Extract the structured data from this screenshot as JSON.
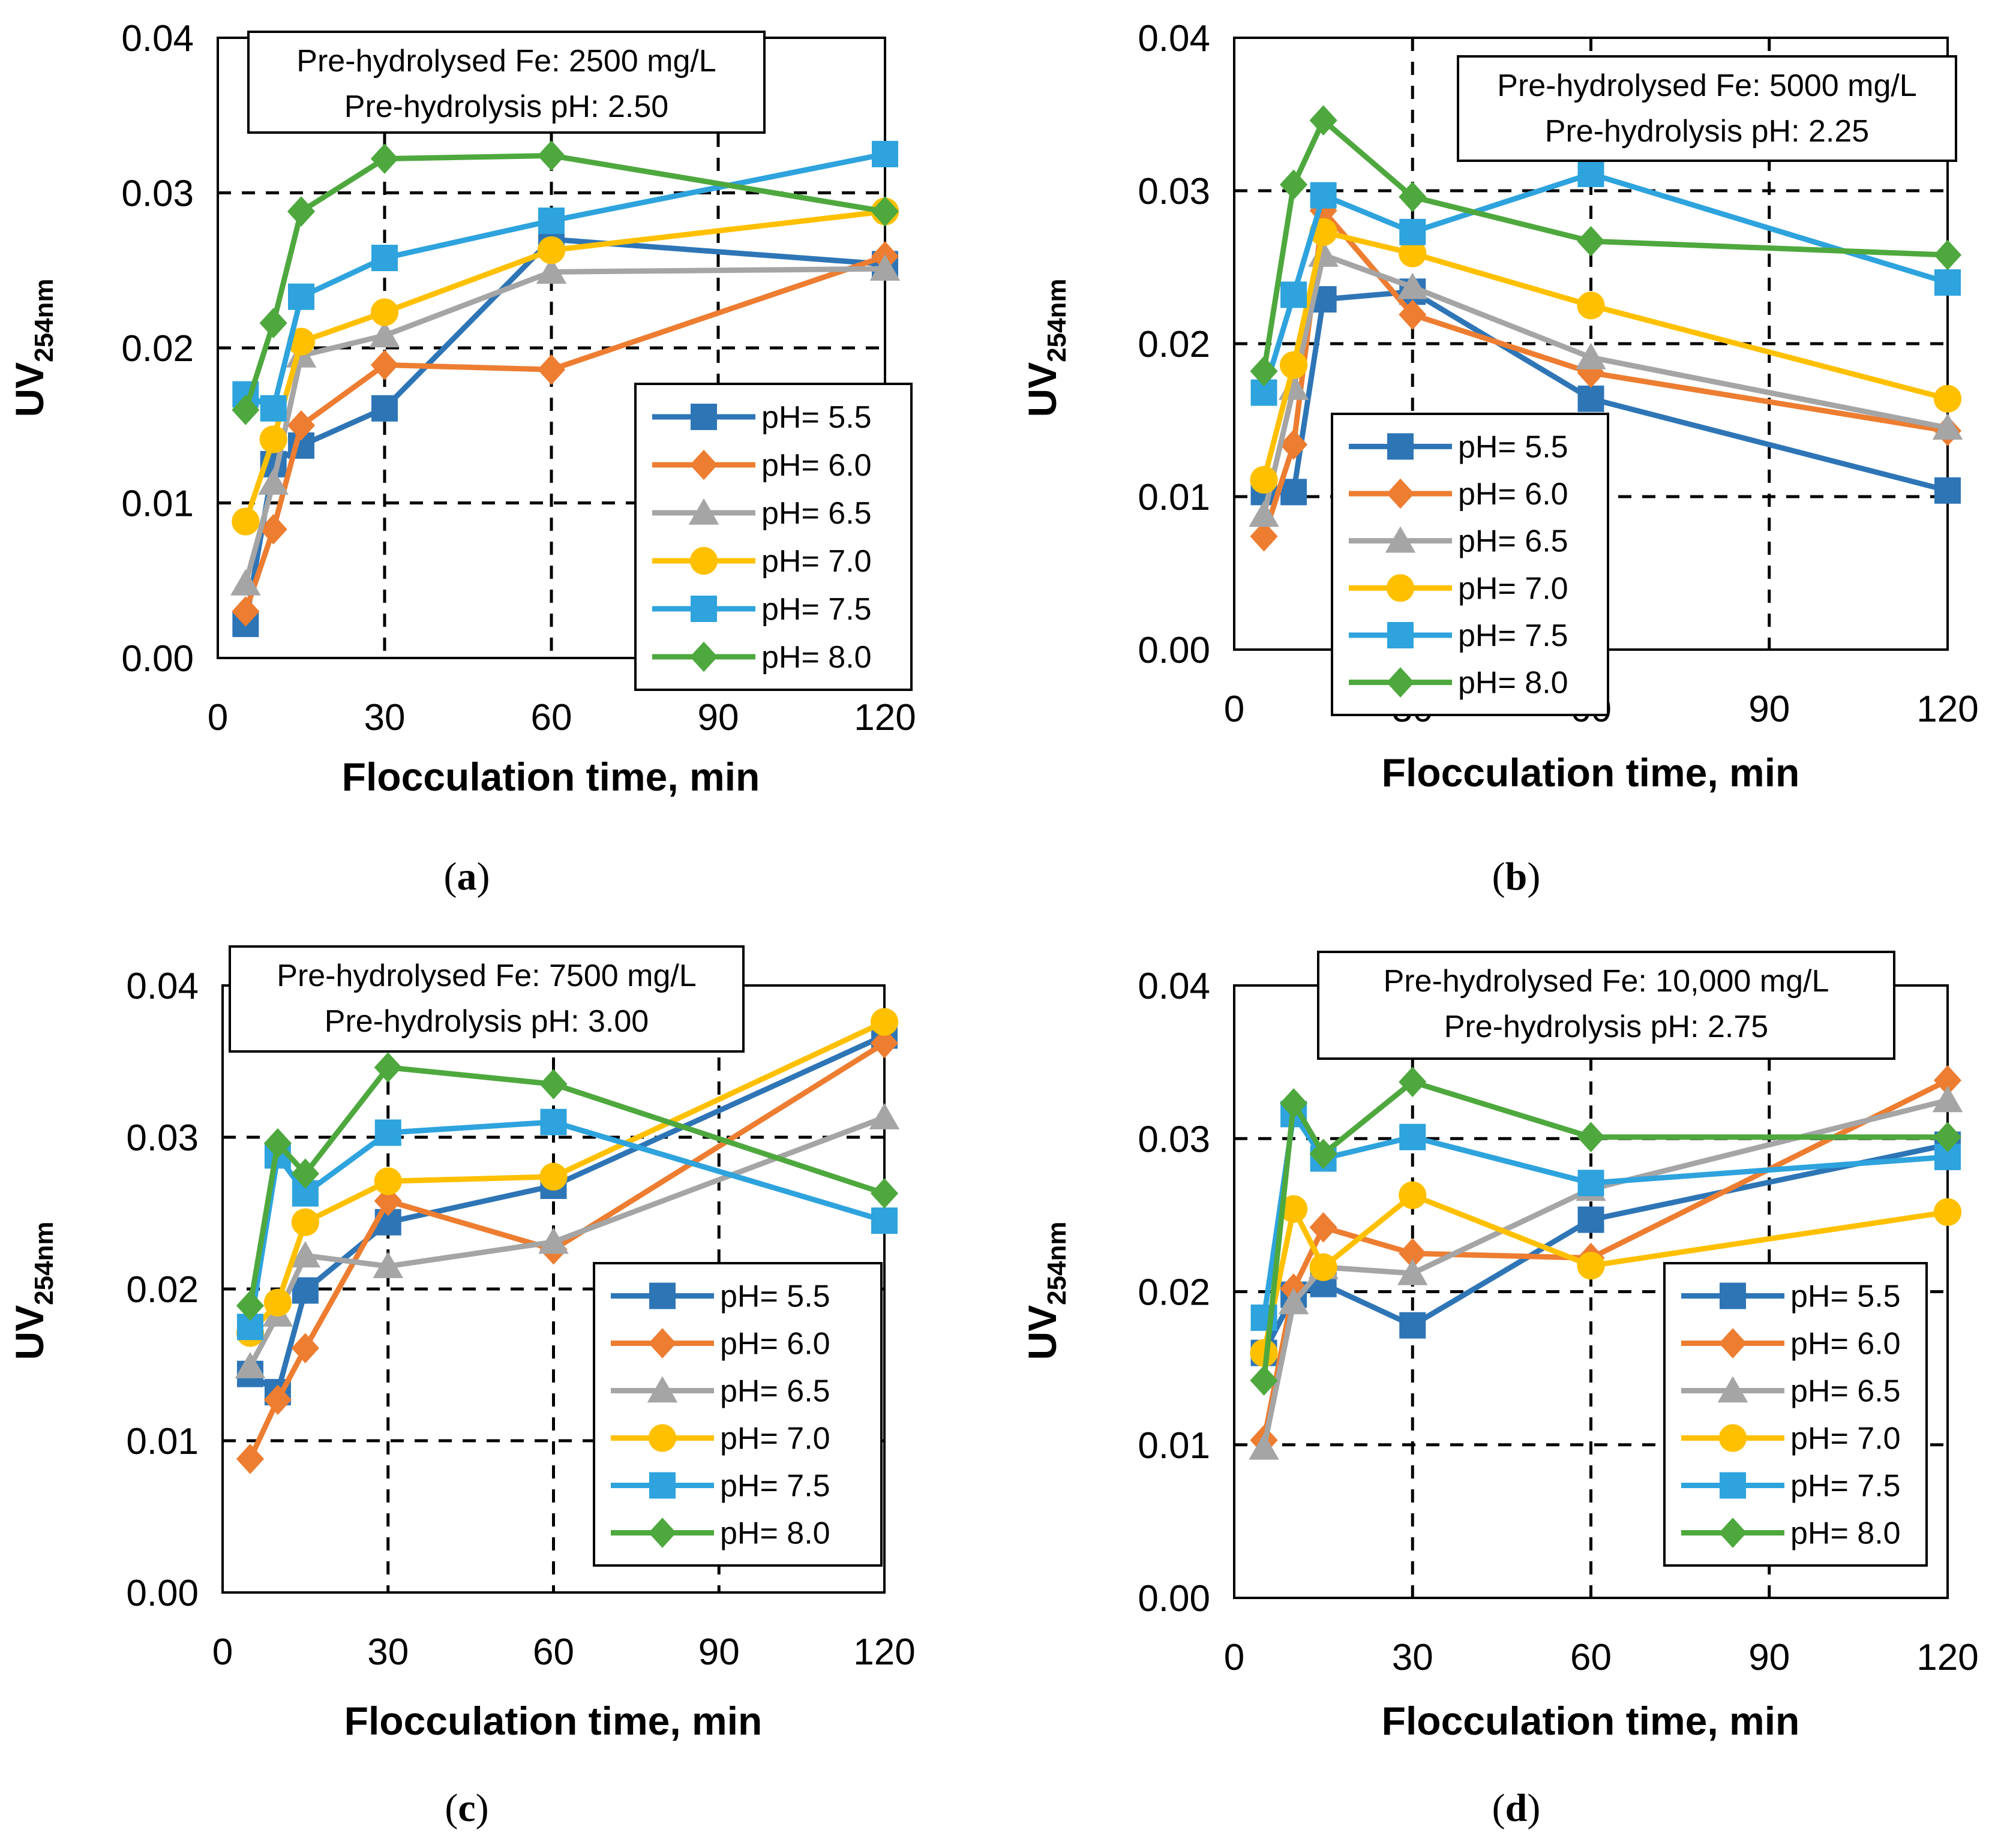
{
  "figure_colors": {
    "pH 5.5": "#2E75B6",
    "pH 6.0": "#ED7D31",
    "pH 6.5": "#A5A5A5",
    "pH 7.0": "#FFC000",
    "pH 7.5": "#2EA3DD",
    "pH 8.0": "#4EA83E"
  },
  "chart_data": [
    {
      "type": "line",
      "caption_letter": "a",
      "annotation": [
        "Pre-hydrolysed Fe: 2500 mg/L",
        "Pre-hydrolysis pH: 2.50"
      ],
      "xlabel": "Flocculation time, min",
      "ylabel_main": "UV",
      "ylabel_sub": "254nm",
      "xlim": [
        0,
        120
      ],
      "ylim": [
        0,
        0.04
      ],
      "x_ticks": [
        "0",
        "30",
        "60",
        "90",
        "120"
      ],
      "y_ticks": [
        "0.00",
        "0.01",
        "0.02",
        "0.03",
        "0.04"
      ],
      "grid": "dashed",
      "legend_position": "bottom-right",
      "x": [
        5,
        10,
        15,
        30,
        60,
        120
      ],
      "series": [
        {
          "name": "pH= 5.5",
          "marker": "square",
          "color": "#2E75B6",
          "values": [
            0.0022,
            0.0125,
            0.0137,
            0.0161,
            0.027,
            0.0254
          ]
        },
        {
          "name": "pH= 6.0",
          "marker": "diamond",
          "color": "#ED7D31",
          "values": [
            0.003,
            0.0083,
            0.015,
            0.0189,
            0.0186,
            0.0259
          ]
        },
        {
          "name": "pH= 6.5",
          "marker": "triangle",
          "color": "#A5A5A5",
          "values": [
            0.0048,
            0.0113,
            0.0195,
            0.0208,
            0.0249,
            0.0251
          ]
        },
        {
          "name": "pH= 7.0",
          "marker": "circle",
          "color": "#FFC000",
          "values": [
            0.0088,
            0.0141,
            0.0204,
            0.0223,
            0.0263,
            0.0288
          ]
        },
        {
          "name": "pH= 7.5",
          "marker": "square",
          "color": "#2EA3DD",
          "values": [
            0.017,
            0.0161,
            0.0233,
            0.0258,
            0.0282,
            0.0325
          ]
        },
        {
          "name": "pH= 8.0",
          "marker": "diamond",
          "color": "#4EA83E",
          "values": [
            0.016,
            0.0216,
            0.0288,
            0.0322,
            0.0324,
            0.0288
          ]
        }
      ]
    },
    {
      "type": "line",
      "caption_letter": "b",
      "annotation": [
        "Pre-hydrolysed Fe: 5000 mg/L",
        "Pre-hydrolysis pH: 2.25"
      ],
      "xlabel": "Flocculation time, min",
      "ylabel_main": "UV",
      "ylabel_sub": "254nm",
      "xlim": [
        0,
        120
      ],
      "ylim": [
        0,
        0.04
      ],
      "x_ticks": [
        "0",
        "30",
        "60",
        "90",
        "120"
      ],
      "y_ticks": [
        "0.00",
        "0.01",
        "0.02",
        "0.03",
        "0.04"
      ],
      "grid": "dashed",
      "legend_position": "bottom-left",
      "x": [
        5,
        10,
        15,
        30,
        60,
        120
      ],
      "series": [
        {
          "name": "pH= 5.5",
          "marker": "square",
          "color": "#2E75B6",
          "values": [
            0.0103,
            0.0103,
            0.0229,
            0.0234,
            0.0164,
            0.0104
          ]
        },
        {
          "name": "pH= 6.0",
          "marker": "diamond",
          "color": "#ED7D31",
          "values": [
            0.0074,
            0.0134,
            0.0287,
            0.0219,
            0.0181,
            0.0143
          ]
        },
        {
          "name": "pH= 6.5",
          "marker": "triangle",
          "color": "#A5A5A5",
          "values": [
            0.0088,
            0.0171,
            0.0258,
            0.0237,
            0.0191,
            0.0145
          ]
        },
        {
          "name": "pH= 7.0",
          "marker": "circle",
          "color": "#FFC000",
          "values": [
            0.0111,
            0.0186,
            0.0273,
            0.0259,
            0.0225,
            0.0164
          ]
        },
        {
          "name": "pH= 7.5",
          "marker": "square",
          "color": "#2EA3DD",
          "values": [
            0.0168,
            0.0232,
            0.0297,
            0.0273,
            0.0311,
            0.024
          ]
        },
        {
          "name": "pH= 8.0",
          "marker": "diamond",
          "color": "#4EA83E",
          "values": [
            0.0182,
            0.0304,
            0.0346,
            0.0296,
            0.0267,
            0.0258
          ]
        }
      ]
    },
    {
      "type": "line",
      "caption_letter": "c",
      "annotation": [
        "Pre-hydrolysed Fe: 7500 mg/L",
        "Pre-hydrolysis pH: 3.00"
      ],
      "xlabel": "Flocculation time, min",
      "ylabel_main": "UV",
      "ylabel_sub": "254nm",
      "xlim": [
        0,
        120
      ],
      "ylim": [
        0,
        0.04
      ],
      "x_ticks": [
        "0",
        "30",
        "60",
        "90",
        "120"
      ],
      "y_ticks": [
        "0.00",
        "0.01",
        "0.02",
        "0.03",
        "0.04"
      ],
      "grid": "dashed",
      "legend_position": "bottom-right",
      "x": [
        5,
        10,
        15,
        30,
        60,
        120
      ],
      "series": [
        {
          "name": "pH= 5.5",
          "marker": "square",
          "color": "#2E75B6",
          "values": [
            0.0144,
            0.0132,
            0.0199,
            0.0244,
            0.0268,
            0.0367
          ]
        },
        {
          "name": "pH= 6.0",
          "marker": "diamond",
          "color": "#ED7D31",
          "values": [
            0.0088,
            0.0127,
            0.0161,
            0.0258,
            0.0226,
            0.0362
          ]
        },
        {
          "name": "pH= 6.5",
          "marker": "triangle",
          "color": "#A5A5A5",
          "values": [
            0.0149,
            0.0183,
            0.0222,
            0.0215,
            0.0231,
            0.0313
          ]
        },
        {
          "name": "pH= 7.0",
          "marker": "circle",
          "color": "#FFC000",
          "values": [
            0.0171,
            0.0191,
            0.0244,
            0.0271,
            0.0274,
            0.0376
          ]
        },
        {
          "name": "pH= 7.5",
          "marker": "square",
          "color": "#2EA3DD",
          "values": [
            0.0175,
            0.0288,
            0.0263,
            0.0303,
            0.031,
            0.0245
          ]
        },
        {
          "name": "pH= 8.0",
          "marker": "diamond",
          "color": "#4EA83E",
          "values": [
            0.0189,
            0.0296,
            0.0276,
            0.0346,
            0.0335,
            0.0263
          ]
        }
      ]
    },
    {
      "type": "line",
      "caption_letter": "d",
      "annotation": [
        "Pre-hydrolysed Fe: 10,000 mg/L",
        "Pre-hydrolysis pH: 2.75"
      ],
      "xlabel": "Flocculation time, min",
      "ylabel_main": "UV",
      "ylabel_sub": "254nm",
      "xlim": [
        0,
        120
      ],
      "ylim": [
        0,
        0.04
      ],
      "x_ticks": [
        "0",
        "30",
        "60",
        "90",
        "120"
      ],
      "y_ticks": [
        "0.00",
        "0.01",
        "0.02",
        "0.03",
        "0.04"
      ],
      "grid": "dashed",
      "legend_position": "bottom-right",
      "x": [
        5,
        10,
        15,
        30,
        60,
        120
      ],
      "series": [
        {
          "name": "pH= 5.5",
          "marker": "square",
          "color": "#2E75B6",
          "values": [
            0.016,
            0.0198,
            0.0205,
            0.0178,
            0.0247,
            0.0296
          ]
        },
        {
          "name": "pH= 6.0",
          "marker": "diamond",
          "color": "#ED7D31",
          "values": [
            0.0103,
            0.0202,
            0.0242,
            0.0225,
            0.0222,
            0.0338
          ]
        },
        {
          "name": "pH= 6.5",
          "marker": "triangle",
          "color": "#A5A5A5",
          "values": [
            0.0098,
            0.0193,
            0.0216,
            0.0212,
            0.0267,
            0.0325
          ]
        },
        {
          "name": "pH= 7.0",
          "marker": "circle",
          "color": "#FFC000",
          "values": [
            0.016,
            0.0254,
            0.0216,
            0.0263,
            0.0217,
            0.0252
          ]
        },
        {
          "name": "pH= 7.5",
          "marker": "square",
          "color": "#2EA3DD",
          "values": [
            0.0183,
            0.0316,
            0.0287,
            0.0301,
            0.0271,
            0.0288
          ]
        },
        {
          "name": "pH= 8.0",
          "marker": "diamond",
          "color": "#4EA83E",
          "values": [
            0.0142,
            0.0323,
            0.029,
            0.0337,
            0.0301,
            0.0301
          ]
        }
      ]
    }
  ]
}
